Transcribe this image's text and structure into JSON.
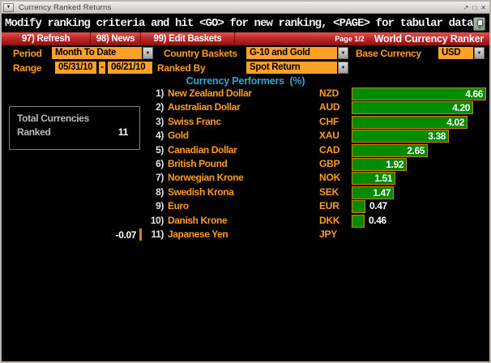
{
  "window": {
    "title": "Currency Ranked Returns",
    "menu_glyph": "▼",
    "controls": {
      "popout": "↗",
      "maximize": "□",
      "close": "✕"
    }
  },
  "message": "Modify ranking criteria and hit <GO> for new ranking, <PAGE> for tabular data",
  "toolbar": {
    "buttons": [
      {
        "label": "97) Refresh"
      },
      {
        "label": "98) News"
      },
      {
        "label": "99) Edit Baskets"
      }
    ],
    "page_indicator": "Page 1/2",
    "app_title": "World Currency Ranker"
  },
  "criteria": {
    "period": {
      "label": "Period",
      "value": "Month To Date"
    },
    "country_baskets": {
      "label": "Country Baskets",
      "value": "G-10 and Gold"
    },
    "base_currency": {
      "label": "Base Currency",
      "value": "USD"
    },
    "range": {
      "label": "Range",
      "start": "05/31/10",
      "separator": "-",
      "end": "06/21/10"
    },
    "ranked_by": {
      "label": "Ranked By",
      "value": "Spot Return"
    },
    "dropdown_glyph": "▼"
  },
  "section_title": "Currency Performers  (%)",
  "summary_box": {
    "line1": "Total Currencies",
    "line2": "Ranked",
    "value": "11"
  },
  "rows": [
    {
      "rank": "1)",
      "name": "New Zealand Dollar",
      "ticker": "NZD",
      "value": 4.66,
      "display": "4.66"
    },
    {
      "rank": "2)",
      "name": "Australian Dollar",
      "ticker": "AUD",
      "value": 4.2,
      "display": "4.20"
    },
    {
      "rank": "3)",
      "name": "Swiss Franc",
      "ticker": "CHF",
      "value": 4.02,
      "display": "4.02"
    },
    {
      "rank": "4)",
      "name": "Gold",
      "ticker": "XAU",
      "value": 3.38,
      "display": "3.38"
    },
    {
      "rank": "5)",
      "name": "Canadian Dollar",
      "ticker": "CAD",
      "value": 2.65,
      "display": "2.65"
    },
    {
      "rank": "6)",
      "name": "British Pound",
      "ticker": "GBP",
      "value": 1.92,
      "display": "1.92"
    },
    {
      "rank": "7)",
      "name": "Norwegian Krone",
      "ticker": "NOK",
      "value": 1.51,
      "display": "1.51"
    },
    {
      "rank": "8)",
      "name": "Swedish Krona",
      "ticker": "SEK",
      "value": 1.47,
      "display": "1.47"
    },
    {
      "rank": "9)",
      "name": "Euro",
      "ticker": "EUR",
      "value": 0.47,
      "display": "0.47"
    },
    {
      "rank": "10)",
      "name": "Danish Krone",
      "ticker": "DKK",
      "value": 0.46,
      "display": "0.46"
    },
    {
      "rank": "11)",
      "name": "Japanese Yen",
      "ticker": "JPY",
      "value": -0.07,
      "display": "-0.07"
    }
  ],
  "chart_data": {
    "type": "bar",
    "orientation": "horizontal",
    "title": "Currency Performers (%)",
    "categories": [
      "New Zealand Dollar (NZD)",
      "Australian Dollar (AUD)",
      "Swiss Franc (CHF)",
      "Gold (XAU)",
      "Canadian Dollar (CAD)",
      "British Pound (GBP)",
      "Norwegian Krone (NOK)",
      "Swedish Krona (SEK)",
      "Euro (EUR)",
      "Danish Krone (DKK)",
      "Japanese Yen (JPY)"
    ],
    "values": [
      4.66,
      4.2,
      4.02,
      3.38,
      2.65,
      1.92,
      1.51,
      1.47,
      0.47,
      0.46,
      -0.07
    ],
    "unit": "%",
    "xlim": [
      -0.5,
      4.8
    ],
    "bar_color": "#008c00",
    "bar_border_color": "#cf8118"
  },
  "colors": {
    "background": "#000000",
    "accent_orange": "#ff9b1e",
    "field_orange": "#ffa028",
    "bar_green": "#008c00",
    "bar_border": "#cf8118",
    "header_cyan": "#2fa8d2",
    "toolbar_red": "#c02a2a"
  }
}
